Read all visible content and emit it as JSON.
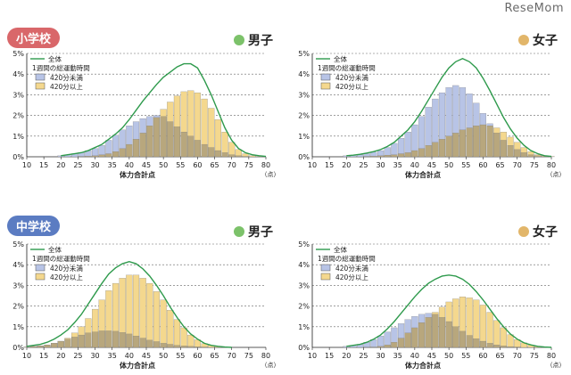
{
  "site": {
    "logo": "ReseMom"
  },
  "sections": [
    {
      "school": "小学校",
      "color": "#d9676a"
    },
    {
      "school": "中学校",
      "color": "#5b7cc2"
    }
  ],
  "genders": [
    {
      "label": "男子",
      "dot_color": "#7cc26a"
    },
    {
      "label": "女子",
      "dot_color": "#e2b66a"
    }
  ],
  "legend": {
    "total": "全体",
    "group_title": "1週間の総運動時間",
    "under": "420分未満",
    "over": "420分以上"
  },
  "colors": {
    "total_line": "#2e9a4c",
    "under_fill": "#b8c4e6",
    "over_fill": "#f4d88e",
    "overlap_fill": "#b8a77d"
  },
  "chart_data": [
    {
      "type": "bar",
      "title": "小学校 男子",
      "xlabel": "体力合計点",
      "x_unit": "（点）",
      "ylim": [
        0,
        5
      ],
      "y_ticks": [
        "0%",
        "1%",
        "2%",
        "3%",
        "4%",
        "5%"
      ],
      "x_ticks": [
        10,
        15,
        20,
        25,
        30,
        35,
        40,
        45,
        50,
        55,
        60,
        65,
        70,
        75,
        80
      ],
      "x": [
        20,
        22,
        24,
        26,
        28,
        30,
        32,
        34,
        36,
        38,
        40,
        42,
        44,
        46,
        48,
        50,
        52,
        54,
        56,
        58,
        60,
        62,
        64,
        66,
        68,
        70,
        72,
        74,
        76,
        78,
        80
      ],
      "series": [
        {
          "name": "全体",
          "type": "line",
          "values": [
            0.05,
            0.1,
            0.15,
            0.2,
            0.3,
            0.45,
            0.6,
            0.85,
            1.1,
            1.4,
            1.8,
            2.25,
            2.7,
            3.1,
            3.5,
            3.85,
            4.1,
            4.35,
            4.5,
            4.5,
            4.3,
            3.7,
            3.0,
            2.2,
            1.4,
            0.8,
            0.4,
            0.2,
            0.1,
            0.05,
            0.02
          ]
        },
        {
          "name": "420分未満",
          "type": "bar",
          "values": [
            0.05,
            0.1,
            0.15,
            0.2,
            0.3,
            0.4,
            0.55,
            0.8,
            1.05,
            1.3,
            1.5,
            1.7,
            1.85,
            1.95,
            2.0,
            1.95,
            1.7,
            1.45,
            1.2,
            1.0,
            0.8,
            0.6,
            0.45,
            0.3,
            0.2,
            0.1,
            0.05,
            0.02,
            0,
            0,
            0
          ]
        },
        {
          "name": "420分以上",
          "type": "bar",
          "values": [
            0,
            0,
            0,
            0.02,
            0.03,
            0.05,
            0.1,
            0.15,
            0.25,
            0.4,
            0.6,
            0.85,
            1.15,
            1.5,
            1.9,
            2.3,
            2.65,
            2.95,
            3.15,
            3.2,
            3.1,
            2.8,
            2.35,
            1.8,
            1.2,
            0.7,
            0.35,
            0.15,
            0.05,
            0.02,
            0
          ]
        }
      ]
    },
    {
      "type": "bar",
      "title": "小学校 女子",
      "xlabel": "体力合計点",
      "x_unit": "（点）",
      "ylim": [
        0,
        5
      ],
      "y_ticks": [
        "0%",
        "1%",
        "2%",
        "3%",
        "4%",
        "5%"
      ],
      "x_ticks": [
        10,
        15,
        20,
        25,
        30,
        35,
        40,
        45,
        50,
        55,
        60,
        65,
        70,
        75,
        80
      ],
      "x": [
        20,
        22,
        24,
        26,
        28,
        30,
        32,
        34,
        36,
        38,
        40,
        42,
        44,
        46,
        48,
        50,
        52,
        54,
        56,
        58,
        60,
        62,
        64,
        66,
        68,
        70,
        72,
        74,
        76,
        78,
        80
      ],
      "series": [
        {
          "name": "全体",
          "type": "line",
          "values": [
            0.05,
            0.08,
            0.12,
            0.18,
            0.25,
            0.35,
            0.5,
            0.7,
            1.0,
            1.3,
            1.7,
            2.2,
            2.75,
            3.3,
            3.85,
            4.3,
            4.6,
            4.75,
            4.6,
            4.3,
            3.8,
            3.2,
            2.55,
            1.9,
            1.35,
            0.9,
            0.55,
            0.3,
            0.15,
            0.05,
            0.02
          ]
        },
        {
          "name": "420分未満",
          "type": "bar",
          "values": [
            0.05,
            0.08,
            0.1,
            0.15,
            0.22,
            0.3,
            0.45,
            0.65,
            0.9,
            1.2,
            1.55,
            1.95,
            2.4,
            2.8,
            3.1,
            3.35,
            3.45,
            3.35,
            3.05,
            2.6,
            2.1,
            1.6,
            1.15,
            0.8,
            0.55,
            0.35,
            0.2,
            0.1,
            0.05,
            0.02,
            0
          ]
        },
        {
          "name": "420分以上",
          "type": "bar",
          "values": [
            0,
            0,
            0,
            0.02,
            0.03,
            0.05,
            0.08,
            0.1,
            0.15,
            0.2,
            0.3,
            0.4,
            0.55,
            0.7,
            0.85,
            1.0,
            1.15,
            1.3,
            1.4,
            1.5,
            1.55,
            1.5,
            1.4,
            1.2,
            0.95,
            0.7,
            0.45,
            0.25,
            0.1,
            0.05,
            0.02
          ]
        }
      ]
    },
    {
      "type": "bar",
      "title": "中学校 男子",
      "xlabel": "体力合計点",
      "x_unit": "（点）",
      "ylim": [
        0,
        5
      ],
      "y_ticks": [
        "0%",
        "1%",
        "2%",
        "3%",
        "4%",
        "5%"
      ],
      "x_ticks": [
        10,
        15,
        20,
        25,
        30,
        35,
        40,
        45,
        50,
        55,
        60,
        65,
        70,
        75,
        80
      ],
      "x": [
        10,
        12,
        14,
        16,
        18,
        20,
        22,
        24,
        26,
        28,
        30,
        32,
        34,
        36,
        38,
        40,
        42,
        44,
        46,
        48,
        50,
        52,
        54,
        56,
        58,
        60,
        62,
        64,
        66,
        68,
        70
      ],
      "series": [
        {
          "name": "全体",
          "type": "line",
          "values": [
            0.05,
            0.1,
            0.15,
            0.25,
            0.4,
            0.6,
            0.85,
            1.2,
            1.6,
            2.1,
            2.6,
            3.1,
            3.55,
            3.85,
            4.05,
            4.15,
            4.05,
            3.8,
            3.45,
            3.0,
            2.5,
            1.95,
            1.45,
            1.0,
            0.65,
            0.4,
            0.2,
            0.1,
            0.05,
            0.02,
            0
          ]
        },
        {
          "name": "420分未満",
          "type": "bar",
          "values": [
            0.02,
            0.05,
            0.08,
            0.12,
            0.2,
            0.3,
            0.4,
            0.5,
            0.6,
            0.7,
            0.75,
            0.8,
            0.8,
            0.78,
            0.72,
            0.65,
            0.55,
            0.45,
            0.35,
            0.28,
            0.2,
            0.15,
            0.1,
            0.07,
            0.05,
            0.03,
            0.02,
            0,
            0,
            0,
            0
          ]
        },
        {
          "name": "420分以上",
          "type": "bar",
          "values": [
            0.02,
            0.05,
            0.07,
            0.12,
            0.2,
            0.3,
            0.45,
            0.7,
            1.0,
            1.4,
            1.85,
            2.3,
            2.75,
            3.1,
            3.35,
            3.5,
            3.5,
            3.35,
            3.1,
            2.7,
            2.3,
            1.8,
            1.35,
            0.95,
            0.6,
            0.37,
            0.18,
            0.1,
            0.05,
            0.02,
            0
          ]
        }
      ]
    },
    {
      "type": "bar",
      "title": "中学校 女子",
      "xlabel": "体力合計点",
      "x_unit": "（点）",
      "ylim": [
        0,
        5
      ],
      "y_ticks": [
        "0%",
        "1%",
        "2%",
        "3%",
        "4%",
        "5%"
      ],
      "x_ticks": [
        10,
        15,
        20,
        25,
        30,
        35,
        40,
        45,
        50,
        55,
        60,
        65,
        70,
        75,
        80
      ],
      "x": [
        20,
        22,
        24,
        26,
        28,
        30,
        32,
        34,
        36,
        38,
        40,
        42,
        44,
        46,
        48,
        50,
        52,
        54,
        56,
        58,
        60,
        62,
        64,
        66,
        68,
        70,
        72,
        74,
        76,
        78,
        80
      ],
      "series": [
        {
          "name": "全体",
          "type": "line",
          "values": [
            0.05,
            0.1,
            0.15,
            0.25,
            0.4,
            0.6,
            0.9,
            1.25,
            1.65,
            2.05,
            2.45,
            2.8,
            3.1,
            3.3,
            3.45,
            3.5,
            3.45,
            3.3,
            3.05,
            2.7,
            2.3,
            1.85,
            1.4,
            1.0,
            0.65,
            0.4,
            0.22,
            0.12,
            0.05,
            0.02,
            0
          ]
        },
        {
          "name": "420分未満",
          "type": "bar",
          "values": [
            0.05,
            0.1,
            0.15,
            0.25,
            0.38,
            0.55,
            0.75,
            0.95,
            1.15,
            1.35,
            1.5,
            1.6,
            1.65,
            1.6,
            1.45,
            1.25,
            1.0,
            0.78,
            0.58,
            0.42,
            0.3,
            0.2,
            0.12,
            0.07,
            0.04,
            0.02,
            0,
            0,
            0,
            0,
            0
          ]
        },
        {
          "name": "420分以上",
          "type": "bar",
          "values": [
            0,
            0,
            0,
            0.01,
            0.02,
            0.05,
            0.12,
            0.25,
            0.45,
            0.7,
            0.95,
            1.2,
            1.45,
            1.7,
            1.95,
            2.2,
            2.35,
            2.45,
            2.4,
            2.3,
            2.05,
            1.7,
            1.3,
            0.95,
            0.62,
            0.38,
            0.22,
            0.12,
            0.05,
            0.02,
            0
          ]
        }
      ]
    }
  ]
}
